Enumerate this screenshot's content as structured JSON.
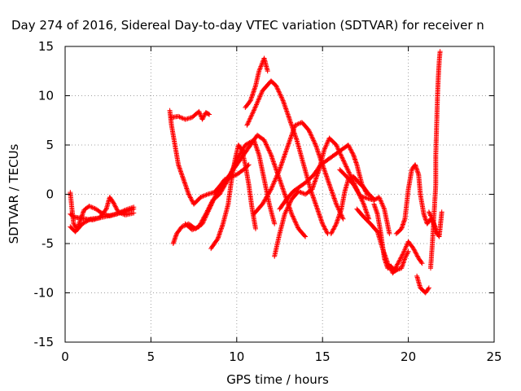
{
  "chart_data": {
    "type": "scatter",
    "title": "Day 274 of 2016, Sidereal Day-to-day VTEC variation (SDTVAR) for receiver n",
    "xlabel": "GPS time / hours",
    "ylabel": "SDTVAR / TECUs",
    "xlim": [
      0,
      25
    ],
    "ylim": [
      -15,
      15
    ],
    "xticks": [
      0,
      5,
      10,
      15,
      20,
      25
    ],
    "yticks": [
      -15,
      -10,
      -5,
      0,
      5,
      10,
      15
    ],
    "xtick_labels": [
      "0",
      "5",
      "10",
      "15",
      "20",
      "25"
    ],
    "ytick_labels": [
      "-15",
      "-10",
      "-5",
      "0",
      "5",
      "10",
      "15"
    ],
    "grid": true,
    "marker": "+",
    "color": "#ff0000",
    "series": [
      {
        "points": [
          [
            0.3,
            0.2
          ],
          [
            0.4,
            -1.5
          ],
          [
            0.5,
            -3.0
          ],
          [
            0.7,
            -3.5
          ],
          [
            0.9,
            -2.6
          ],
          [
            1.1,
            -1.6
          ],
          [
            1.4,
            -1.2
          ],
          [
            1.8,
            -1.5
          ],
          [
            2.2,
            -2.0
          ],
          [
            2.6,
            -2.2
          ],
          [
            3.0,
            -2.0
          ],
          [
            3.4,
            -1.8
          ],
          [
            3.8,
            -1.6
          ],
          [
            4.0,
            -1.5
          ]
        ]
      },
      {
        "points": [
          [
            0.3,
            -2.0
          ],
          [
            0.5,
            -2.3
          ],
          [
            0.8,
            -2.4
          ],
          [
            1.2,
            -2.5
          ],
          [
            1.6,
            -2.6
          ],
          [
            2.0,
            -2.4
          ],
          [
            2.4,
            -1.5
          ],
          [
            2.6,
            -0.3
          ],
          [
            2.8,
            -0.8
          ],
          [
            3.1,
            -1.8
          ],
          [
            3.5,
            -2.1
          ],
          [
            4.0,
            -1.9
          ]
        ]
      },
      {
        "points": [
          [
            0.3,
            -3.3
          ],
          [
            0.6,
            -3.8
          ],
          [
            1.0,
            -3.0
          ],
          [
            1.5,
            -2.5
          ],
          [
            2.0,
            -2.4
          ],
          [
            2.5,
            -2.2
          ],
          [
            3.0,
            -2.0
          ],
          [
            3.5,
            -1.6
          ],
          [
            4.0,
            -1.3
          ]
        ]
      },
      {
        "points": [
          [
            6.1,
            8.5
          ],
          [
            6.2,
            7.0
          ],
          [
            6.4,
            5.0
          ],
          [
            6.6,
            3.0
          ],
          [
            6.9,
            1.5
          ],
          [
            7.2,
            0.0
          ],
          [
            7.5,
            -1.0
          ],
          [
            7.9,
            -0.3
          ],
          [
            8.3,
            0.0
          ],
          [
            8.7,
            0.2
          ],
          [
            9.0,
            0.8
          ],
          [
            9.3,
            1.5
          ],
          [
            9.6,
            1.7
          ],
          [
            10.0,
            2.0
          ],
          [
            10.4,
            2.5
          ],
          [
            10.7,
            3.0
          ]
        ]
      },
      {
        "points": [
          [
            6.2,
            7.8
          ],
          [
            6.6,
            7.9
          ],
          [
            7.0,
            7.6
          ],
          [
            7.4,
            7.8
          ],
          [
            7.8,
            8.4
          ],
          [
            8.0,
            7.6
          ],
          [
            8.2,
            8.3
          ],
          [
            8.4,
            8.1
          ]
        ]
      },
      {
        "points": [
          [
            6.3,
            -5.0
          ],
          [
            6.5,
            -4.0
          ],
          [
            6.8,
            -3.3
          ],
          [
            7.2,
            -3.0
          ],
          [
            7.6,
            -3.5
          ],
          [
            8.0,
            -3.0
          ],
          [
            8.4,
            -1.5
          ],
          [
            8.8,
            0.0
          ],
          [
            9.2,
            1.0
          ],
          [
            9.6,
            2.0
          ],
          [
            10.0,
            3.0
          ],
          [
            10.4,
            4.0
          ],
          [
            10.8,
            5.0
          ],
          [
            11.2,
            6.0
          ],
          [
            11.6,
            5.5
          ],
          [
            12.0,
            4.0
          ],
          [
            12.4,
            2.0
          ],
          [
            12.8,
            0.0
          ],
          [
            13.2,
            -2.0
          ],
          [
            13.6,
            -3.5
          ],
          [
            14.0,
            -4.3
          ]
        ]
      },
      {
        "points": [
          [
            7.0,
            -3.0
          ],
          [
            7.4,
            -3.6
          ],
          [
            7.8,
            -3.3
          ],
          [
            8.2,
            -2.0
          ],
          [
            8.6,
            -0.6
          ],
          [
            9.0,
            0.0
          ],
          [
            9.5,
            1.5
          ],
          [
            10.0,
            3.5
          ],
          [
            10.5,
            5.0
          ],
          [
            11.0,
            5.5
          ],
          [
            11.3,
            4.0
          ],
          [
            11.6,
            1.5
          ],
          [
            11.9,
            -1.0
          ],
          [
            12.2,
            -3.0
          ]
        ]
      },
      {
        "points": [
          [
            8.5,
            -5.5
          ],
          [
            8.9,
            -4.5
          ],
          [
            9.2,
            -3.0
          ],
          [
            9.5,
            -1.0
          ],
          [
            9.7,
            1.5
          ],
          [
            9.9,
            3.5
          ],
          [
            10.1,
            5.0
          ],
          [
            10.3,
            4.5
          ],
          [
            10.5,
            3.0
          ],
          [
            10.7,
            1.0
          ],
          [
            10.9,
            -1.5
          ],
          [
            11.1,
            -3.5
          ]
        ]
      },
      {
        "points": [
          [
            10.5,
            8.8
          ],
          [
            10.8,
            9.5
          ],
          [
            11.1,
            11.0
          ],
          [
            11.3,
            12.5
          ],
          [
            11.6,
            13.8
          ],
          [
            11.8,
            12.5
          ]
        ]
      },
      {
        "points": [
          [
            10.6,
            7.0
          ],
          [
            11.0,
            8.5
          ],
          [
            11.5,
            10.5
          ],
          [
            12.0,
            11.5
          ],
          [
            12.3,
            11.0
          ],
          [
            12.7,
            9.5
          ],
          [
            13.1,
            7.5
          ],
          [
            13.5,
            5.5
          ],
          [
            13.9,
            3.0
          ],
          [
            14.3,
            0.5
          ],
          [
            14.7,
            -1.5
          ],
          [
            15.0,
            -3.0
          ],
          [
            15.3,
            -4.0
          ]
        ]
      },
      {
        "points": [
          [
            11.0,
            -2.0
          ],
          [
            11.5,
            -1.0
          ],
          [
            12.0,
            0.5
          ],
          [
            12.5,
            2.5
          ],
          [
            13.0,
            5.0
          ],
          [
            13.4,
            7.0
          ],
          [
            13.8,
            7.3
          ],
          [
            14.2,
            6.5
          ],
          [
            14.6,
            5.0
          ],
          [
            15.0,
            3.0
          ],
          [
            15.4,
            1.0
          ],
          [
            15.8,
            -1.0
          ],
          [
            16.2,
            -2.5
          ]
        ]
      },
      {
        "points": [
          [
            12.2,
            -6.3
          ],
          [
            12.5,
            -4.0
          ],
          [
            12.8,
            -2.0
          ],
          [
            13.2,
            -0.5
          ],
          [
            13.6,
            0.3
          ],
          [
            14.0,
            0.0
          ],
          [
            14.4,
            0.5
          ],
          [
            14.8,
            2.5
          ],
          [
            15.1,
            4.5
          ],
          [
            15.4,
            5.7
          ],
          [
            15.8,
            5.0
          ],
          [
            16.2,
            3.5
          ],
          [
            16.6,
            2.0
          ],
          [
            17.0,
            0.5
          ],
          [
            17.4,
            -1.0
          ],
          [
            17.7,
            -2.5
          ]
        ]
      },
      {
        "points": [
          [
            12.5,
            -1.5
          ],
          [
            12.9,
            -0.5
          ],
          [
            13.3,
            0.3
          ],
          [
            13.7,
            0.8
          ],
          [
            14.1,
            1.3
          ],
          [
            14.5,
            2.0
          ],
          [
            14.9,
            3.0
          ],
          [
            15.3,
            3.5
          ],
          [
            15.7,
            4.0
          ],
          [
            16.1,
            4.5
          ],
          [
            16.5,
            5.0
          ],
          [
            16.8,
            4.0
          ],
          [
            17.0,
            3.0
          ],
          [
            17.3,
            1.0
          ],
          [
            17.6,
            0.0
          ]
        ]
      },
      {
        "points": [
          [
            15.5,
            -4.0
          ],
          [
            15.8,
            -3.0
          ],
          [
            16.1,
            -1.5
          ],
          [
            16.3,
            0.3
          ],
          [
            16.5,
            1.5
          ],
          [
            16.8,
            1.8
          ],
          [
            17.1,
            1.2
          ],
          [
            17.4,
            0.7
          ],
          [
            17.7,
            0.0
          ],
          [
            18.0,
            -0.5
          ]
        ]
      },
      {
        "points": [
          [
            16.0,
            2.5
          ],
          [
            16.4,
            1.8
          ],
          [
            16.8,
            1.0
          ],
          [
            17.2,
            -0.2
          ],
          [
            17.6,
            -0.4
          ],
          [
            18.0,
            -0.6
          ],
          [
            18.3,
            -0.3
          ],
          [
            18.6,
            -1.5
          ],
          [
            18.9,
            -4.0
          ]
        ]
      },
      {
        "points": [
          [
            17.0,
            -1.5
          ],
          [
            17.4,
            -2.3
          ],
          [
            17.8,
            -3.0
          ],
          [
            18.2,
            -3.8
          ],
          [
            18.5,
            -5.5
          ],
          [
            18.8,
            -7.0
          ],
          [
            19.1,
            -8.0
          ],
          [
            19.4,
            -7.0
          ],
          [
            19.7,
            -6.0
          ],
          [
            20.0,
            -4.8
          ],
          [
            20.3,
            -5.5
          ],
          [
            20.6,
            -6.5
          ],
          [
            20.8,
            -7.0
          ]
        ]
      },
      {
        "points": [
          [
            18.0,
            -1.0
          ],
          [
            18.2,
            -2.0
          ],
          [
            18.4,
            -4.0
          ],
          [
            18.6,
            -6.5
          ],
          [
            18.8,
            -7.5
          ],
          [
            19.0,
            -7.3
          ],
          [
            19.2,
            -7.8
          ],
          [
            19.4,
            -7.6
          ],
          [
            19.6,
            -7.5
          ],
          [
            19.8,
            -6.5
          ],
          [
            20.0,
            -5.8
          ]
        ]
      },
      {
        "points": [
          [
            19.3,
            -4.0
          ],
          [
            19.6,
            -3.5
          ],
          [
            19.8,
            -2.5
          ],
          [
            20.0,
            0.5
          ],
          [
            20.2,
            2.5
          ],
          [
            20.4,
            3.0
          ],
          [
            20.6,
            2.0
          ],
          [
            20.7,
            0.0
          ],
          [
            20.9,
            -2.0
          ],
          [
            21.1,
            -3.0
          ],
          [
            21.3,
            -2.5
          ],
          [
            21.5,
            -3.0
          ],
          [
            21.7,
            -4.0
          ]
        ]
      },
      {
        "points": [
          [
            20.5,
            -8.3
          ],
          [
            20.7,
            -9.5
          ],
          [
            21.0,
            -10.0
          ],
          [
            21.2,
            -9.5
          ]
        ]
      },
      {
        "points": [
          [
            21.2,
            -1.8
          ],
          [
            21.4,
            -2.5
          ],
          [
            21.6,
            -3.8
          ],
          [
            21.8,
            -4.3
          ],
          [
            21.95,
            -1.8
          ]
        ]
      },
      {
        "points": [
          [
            21.3,
            -7.5
          ],
          [
            21.4,
            -5.0
          ],
          [
            21.5,
            -2.0
          ],
          [
            21.6,
            1.0
          ],
          [
            21.6,
            4.0
          ],
          [
            21.65,
            7.0
          ],
          [
            21.7,
            10.0
          ],
          [
            21.75,
            12.0
          ],
          [
            21.8,
            13.5
          ],
          [
            21.85,
            14.5
          ]
        ]
      }
    ]
  }
}
